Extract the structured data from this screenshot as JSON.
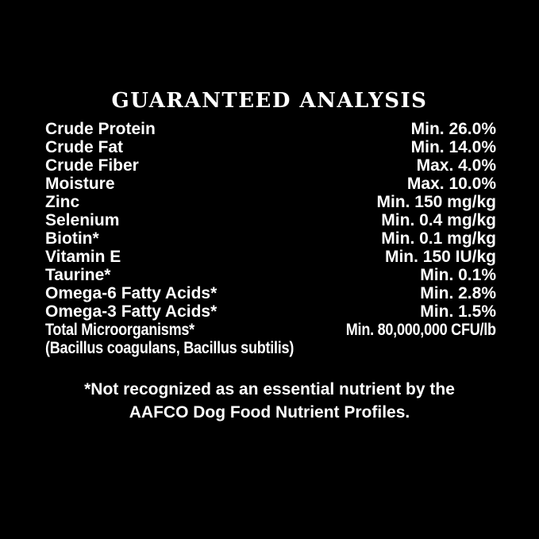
{
  "page": {
    "background_color": "#000000",
    "text_color": "#ffffff"
  },
  "label": {
    "title": "GUARANTEED ANALYSIS",
    "rows": [
      {
        "name": "Crude Protein",
        "value": "Min. 26.0%",
        "condensed": false
      },
      {
        "name": "Crude Fat",
        "value": "Min. 14.0%",
        "condensed": false
      },
      {
        "name": "Crude Fiber",
        "value": "Max. 4.0%",
        "condensed": false
      },
      {
        "name": "Moisture",
        "value": "Max. 10.0%",
        "condensed": false
      },
      {
        "name": "Zinc",
        "value": "Min. 150 mg/kg",
        "condensed": false
      },
      {
        "name": "Selenium",
        "value": "Min. 0.4 mg/kg",
        "condensed": false
      },
      {
        "name": "Biotin*",
        "value": "Min. 0.1 mg/kg",
        "condensed": false
      },
      {
        "name": "Vitamin E",
        "value": "Min. 150 IU/kg",
        "condensed": false
      },
      {
        "name": "Taurine*",
        "value": "Min. 0.1%",
        "condensed": false
      },
      {
        "name": "Omega-6 Fatty Acids*",
        "value": "Min. 2.8%",
        "condensed": false
      },
      {
        "name": "Omega-3 Fatty Acids*",
        "value": "Min. 1.5%",
        "condensed": false
      },
      {
        "name": "Total Microorganisms*",
        "value": "Min. 80,000,000 CFU/lb",
        "condensed": true
      },
      {
        "name": "(Bacillus coagulans, Bacillus subtilis)",
        "value": "",
        "condensed": true
      }
    ],
    "footnote": [
      "*Not recognized as an essential nutrient by the",
      "AAFCO Dog Food Nutrient Profiles."
    ]
  }
}
